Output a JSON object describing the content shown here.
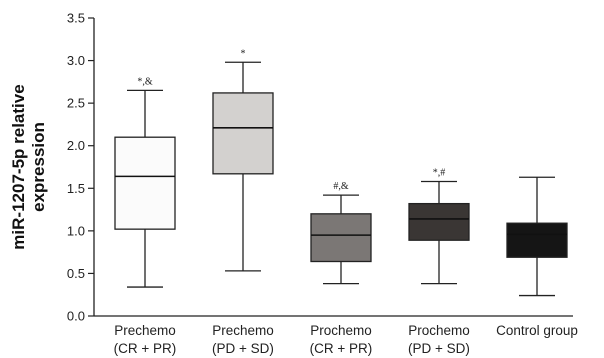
{
  "chart_data": {
    "type": "boxplot",
    "title": "",
    "xlabel": "",
    "ylabel_lines": [
      "miR-1207-5p relative",
      "expression"
    ],
    "ylim": [
      0,
      3.5
    ],
    "yticks": [
      "0.0",
      "0.5",
      "1.0",
      "1.5",
      "2.0",
      "2.5",
      "3.0",
      "3.5"
    ],
    "grid": false,
    "legend": "none",
    "categories": [
      [
        "Prechemo",
        "(CR + PR)"
      ],
      [
        "Prechemo",
        "(PD + SD)"
      ],
      [
        "Prochemo",
        "(CR + PR)"
      ],
      [
        "Prochemo",
        "(PD + SD)"
      ],
      [
        "Control group"
      ]
    ],
    "boxes": [
      {
        "min": 0.34,
        "q1": 1.02,
        "median": 1.64,
        "q3": 2.1,
        "max": 2.65,
        "fill": "#fbfbfb",
        "annotation": "*,&"
      },
      {
        "min": 0.53,
        "q1": 1.67,
        "median": 2.21,
        "q3": 2.62,
        "max": 2.98,
        "fill": "#d3d1cf",
        "annotation": "*"
      },
      {
        "min": 0.38,
        "q1": 0.64,
        "median": 0.95,
        "q3": 1.2,
        "max": 1.42,
        "fill": "#7b7775",
        "annotation": "#,&"
      },
      {
        "min": 0.38,
        "q1": 0.89,
        "median": 1.14,
        "q3": 1.32,
        "max": 1.58,
        "fill": "#3a3634",
        "annotation": "*,#"
      },
      {
        "min": 0.24,
        "q1": 0.69,
        "median": 0.96,
        "q3": 1.09,
        "max": 1.63,
        "fill": "#151515",
        "annotation": ""
      }
    ]
  }
}
